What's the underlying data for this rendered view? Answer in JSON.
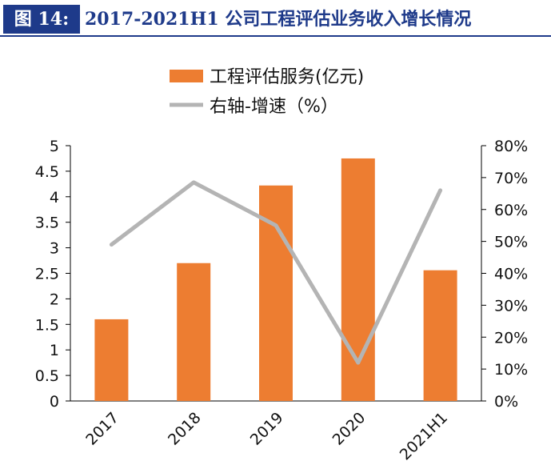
{
  "header": {
    "figure_label": "图 14:",
    "title": "2017-2021H1 公司工程评估业务收入增长情况"
  },
  "colors": {
    "bar": "#ED7D31",
    "line": "#B4B4B4",
    "header_bg": "#1E3A8A"
  },
  "chart_data": {
    "type": "bar",
    "title": "",
    "categories": [
      "2017",
      "2018",
      "2019",
      "2020",
      "2021H1"
    ],
    "series": [
      {
        "name": "工程评估服务(亿元)",
        "type": "bar",
        "axis": "left",
        "values": [
          1.6,
          2.7,
          4.22,
          4.75,
          2.56
        ]
      },
      {
        "name": "右轴-增速（%）",
        "type": "line",
        "axis": "right",
        "values": [
          49,
          68.5,
          55,
          12,
          66
        ]
      }
    ],
    "y_left": {
      "min": 0,
      "max": 5,
      "ticks": [
        "0",
        "0.5",
        "1",
        "1.5",
        "2",
        "2.5",
        "3",
        "3.5",
        "4",
        "4.5",
        "5"
      ]
    },
    "y_right": {
      "min": 0,
      "max": 80,
      "ticks": [
        "0%",
        "10%",
        "20%",
        "30%",
        "40%",
        "50%",
        "60%",
        "70%",
        "80%"
      ]
    },
    "xlabel": "",
    "ylabel": "",
    "legend_position": "top-center",
    "grid": false
  }
}
